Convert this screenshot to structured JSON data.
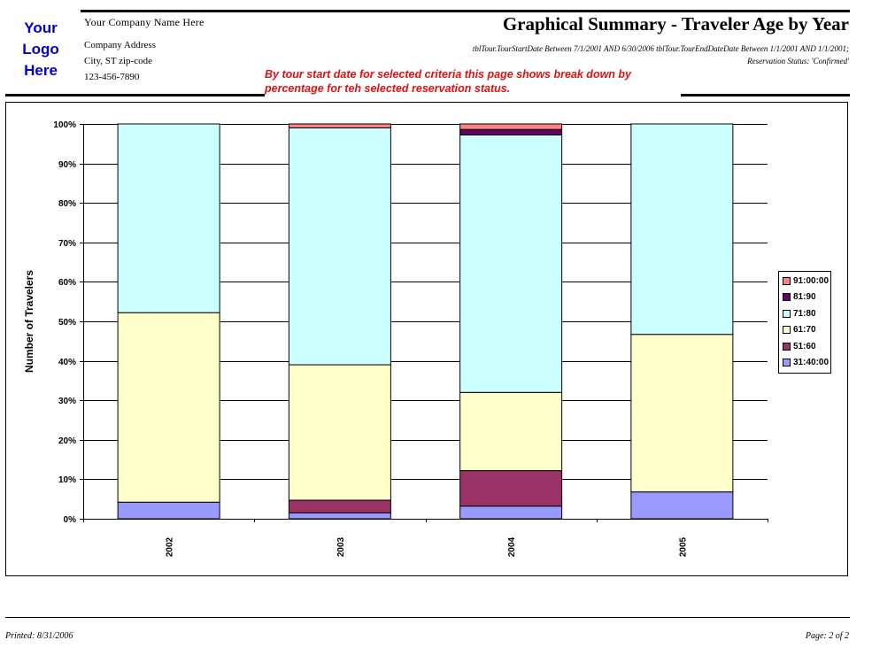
{
  "header": {
    "logo_lines": [
      "Your",
      "Logo",
      "Here"
    ],
    "company_name": "Your Company Name Here",
    "company_address": "Company Address",
    "company_city": "City, ST zip-code",
    "company_phone": "123-456-7890",
    "title": "Graphical Summary - Traveler Age by Year",
    "criteria_line1": "tblTour.TourStartDate Between 7/1/2001 AND 6/30/2006 tblTour.TourEndDateDate Between 1/1/2001 AND 1/1/2001;",
    "criteria_line2": "Reservation Status: 'Confirmed'",
    "note": "By tour start date for selected criteria this page shows break down by percentage for teh selected reservation status."
  },
  "chart_data": {
    "type": "bar",
    "stacked": true,
    "percent": true,
    "categories": [
      "2002",
      "2003",
      "2004",
      "2005"
    ],
    "ylabel": "Number of Travelers",
    "ylim": [
      0,
      100
    ],
    "yticks": [
      "0%",
      "10%",
      "20%",
      "30%",
      "40%",
      "50%",
      "60%",
      "70%",
      "80%",
      "90%",
      "100%"
    ],
    "grid": true,
    "legend": "right",
    "series": [
      {
        "name": "31:40:00",
        "color": "#9999ff",
        "values": [
          4.2,
          1.5,
          3.2,
          6.8
        ]
      },
      {
        "name": "51:60",
        "color": "#993366",
        "values": [
          0,
          3.2,
          9.0,
          0
        ]
      },
      {
        "name": "61:70",
        "color": "#ffffcc",
        "values": [
          48.0,
          34.3,
          19.8,
          39.9
        ]
      },
      {
        "name": "71:80",
        "color": "#ccffff",
        "values": [
          47.8,
          60.0,
          65.2,
          53.3
        ]
      },
      {
        "name": "81:90",
        "color": "#660066",
        "values": [
          0,
          0,
          1.4,
          0
        ]
      },
      {
        "name": "91:00:00",
        "color": "#ff8080",
        "values": [
          0,
          1.0,
          1.4,
          0
        ]
      }
    ]
  },
  "footer": {
    "printed": "Printed: 8/31/2006",
    "page": "Page: 2 of 2"
  }
}
